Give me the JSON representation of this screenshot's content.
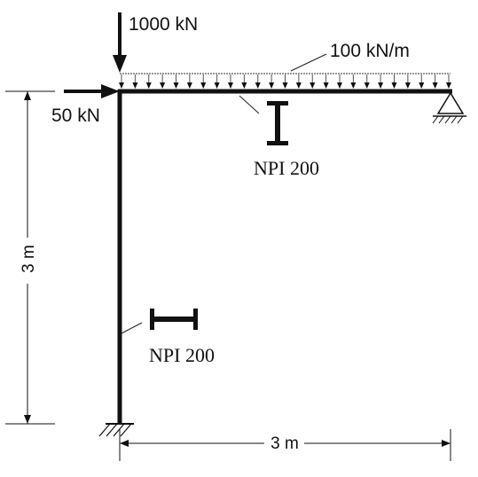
{
  "loads": {
    "vertical_point_load": "1000 kN",
    "horizontal_point_load": "50 kN",
    "distributed_load": "100 kN/m",
    "distributed_arrow_count": 25
  },
  "sections": {
    "beam_section": "NPI 200",
    "column_section": "NPI 200"
  },
  "dimensions": {
    "column_height": "3 m",
    "beam_span": "3 m"
  },
  "supports": {
    "column_base": "fixed",
    "beam_end": "pinned"
  }
}
